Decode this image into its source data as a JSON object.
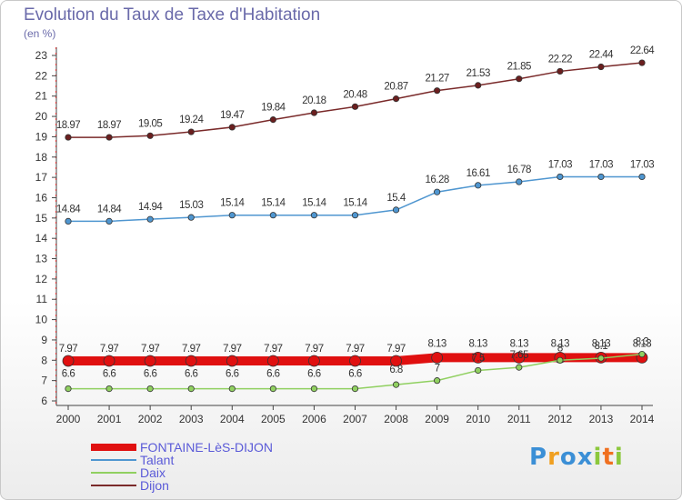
{
  "page": {
    "title": "Evolution du Taux de Taxe d'Habitation",
    "unit": "(en %)"
  },
  "logo": {
    "text": "Proxiti",
    "letters": [
      "P",
      "r",
      "o",
      "x",
      "i",
      "t",
      "i"
    ],
    "colors": [
      "#3b8fd6",
      "#f0a020",
      "#3b8fd6",
      "#3b8fd6",
      "#8cc83c",
      "#f07020",
      "#8cc83c"
    ]
  },
  "chart_data": {
    "type": "line",
    "title": "Evolution du Taux de Taxe d'Habitation",
    "ylabel": "(en %)",
    "xlabel": "",
    "x": [
      "2000",
      "2001",
      "2002",
      "2003",
      "2004",
      "2005",
      "2006",
      "2007",
      "2008",
      "2009",
      "2010",
      "2011",
      "2012",
      "2013",
      "2014"
    ],
    "ylim": [
      6,
      23
    ],
    "yticks": [
      6,
      7,
      8,
      9,
      10,
      11,
      12,
      13,
      14,
      15,
      16,
      17,
      18,
      19,
      20,
      21,
      22,
      23
    ],
    "grid": false,
    "legend_position": "bottom-left",
    "series": [
      {
        "name": "FONTAINE-LèS-DIJON",
        "color": "#e01010",
        "values": [
          7.97,
          7.97,
          7.97,
          7.97,
          7.97,
          7.97,
          7.97,
          7.97,
          7.97,
          8.13,
          8.13,
          8.13,
          8.13,
          8.13,
          8.13
        ],
        "labels": [
          "7.97",
          "7.97",
          "7.97",
          "7.97",
          "7.97",
          "7.97",
          "7.97",
          "7.97",
          "7.97",
          "8.13",
          "8.13",
          "8.13",
          "8.13",
          "8.13",
          "8.13"
        ]
      },
      {
        "name": "Talant",
        "color": "#4f96d0",
        "values": [
          14.84,
          14.84,
          14.94,
          15.03,
          15.14,
          15.14,
          15.14,
          15.14,
          15.4,
          16.28,
          16.61,
          16.78,
          17.03,
          17.03,
          17.03
        ],
        "labels": [
          "14.84",
          "14.84",
          "14.94",
          "15.03",
          "15.14",
          "15.14",
          "15.14",
          "15.14",
          "15.4",
          "16.28",
          "16.61",
          "16.78",
          "17.03",
          "17.03",
          "17.03"
        ]
      },
      {
        "name": "Daix",
        "color": "#90d060",
        "values": [
          6.6,
          6.6,
          6.6,
          6.6,
          6.6,
          6.6,
          6.6,
          6.6,
          6.8,
          7,
          7.5,
          7.65,
          8,
          8.1,
          8.3
        ],
        "labels": [
          "6.6",
          "6.6",
          "6.6",
          "6.6",
          "6.6",
          "6.6",
          "6.6",
          "6.6",
          "6.8",
          "7",
          "7.5",
          "7.65",
          "8",
          "8.1",
          "8.3"
        ]
      },
      {
        "name": "Dijon",
        "color": "#7a2a2a",
        "values": [
          18.97,
          18.97,
          19.05,
          19.24,
          19.47,
          19.84,
          20.18,
          20.48,
          20.87,
          21.27,
          21.53,
          21.85,
          22.22,
          22.44,
          22.64
        ],
        "labels": [
          "18.97",
          "18.97",
          "19.05",
          "19.24",
          "19.47",
          "19.84",
          "20.18",
          "20.48",
          "20.87",
          "21.27",
          "21.53",
          "21.85",
          "22.22",
          "22.44",
          "22.64"
        ]
      }
    ]
  }
}
